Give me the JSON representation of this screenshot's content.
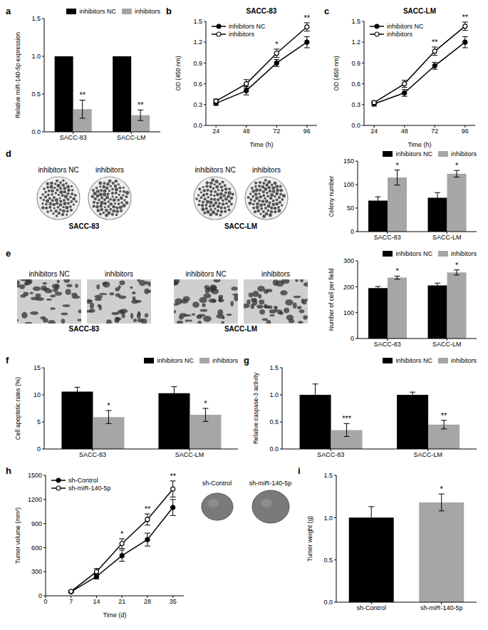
{
  "chart_data": [
    {
      "panel": "a",
      "type": "bar",
      "categories": [
        "SACC-83",
        "SACC-LM"
      ],
      "series": [
        {
          "name": "inhibitors NC",
          "color": "#000000",
          "values": [
            1,
            1
          ]
        },
        {
          "name": "inhibitors",
          "color": "#a6a6a6",
          "values": [
            0.3,
            0.22
          ],
          "errors": [
            0.12,
            0.07
          ]
        }
      ],
      "y_label": "Relative miR-140-5p expression",
      "ylim": [
        0,
        1.5
      ],
      "yticks": [
        {
          "value": 0,
          "label": "0.0"
        },
        0.5,
        {
          "value": 1,
          "label": "1.0"
        },
        1.5
      ],
      "legend": "upper right",
      "annotations": [
        {
          "text": "**",
          "category": "SACC-83",
          "series": "inhibitors"
        },
        {
          "text": "**",
          "category": "SACC-LM",
          "series": "inhibitors"
        }
      ]
    },
    {
      "panel": "b",
      "type": "line",
      "title": "SACC-83",
      "x": [
        24,
        48,
        72,
        96
      ],
      "xlim": [
        16,
        104
      ],
      "xticks": [
        24,
        48,
        72,
        96
      ],
      "x_label": "Time (h)",
      "y_label": "OD (450 nm)",
      "ylim": [
        0,
        1.5
      ],
      "yticks": [
        {
          "value": 0,
          "label": "0.0"
        },
        0.3,
        0.6,
        0.9,
        1.2,
        1.5
      ],
      "legend": "upper left",
      "series": [
        {
          "name": "inhibitors NC",
          "color": "#000000",
          "marker": "circle",
          "values": [
            0.32,
            0.5,
            0.9,
            1.2
          ],
          "errors": [
            0.03,
            0.06,
            0.05,
            0.08
          ]
        },
        {
          "name": "inhibitors",
          "color": "#000000",
          "marker": "open circle",
          "values": [
            0.35,
            0.6,
            1.04,
            1.42
          ],
          "errors": [
            0.03,
            0.06,
            0.06,
            0.06
          ]
        }
      ],
      "annotations": [
        {
          "text": "*",
          "x": 72
        },
        {
          "text": "**",
          "x": 96
        }
      ]
    },
    {
      "panel": "c",
      "type": "line",
      "title": "SACC-LM",
      "x": [
        24,
        48,
        72,
        96
      ],
      "xlim": [
        16,
        104
      ],
      "xticks": [
        24,
        48,
        72,
        96
      ],
      "x_label": "Time (h)",
      "y_label": "OD (450 nm)",
      "ylim": [
        0,
        1.5
      ],
      "yticks": [
        {
          "value": 0,
          "label": "0.0"
        },
        0.3,
        0.6,
        0.9,
        1.2,
        1.5
      ],
      "legend": "upper left",
      "series": [
        {
          "name": "inhibitors NC",
          "color": "#000000",
          "marker": "circle",
          "values": [
            0.31,
            0.47,
            0.86,
            1.2
          ],
          "errors": [
            0.03,
            0.05,
            0.05,
            0.08
          ]
        },
        {
          "name": "inhibitors",
          "color": "#000000",
          "marker": "open circle",
          "values": [
            0.33,
            0.6,
            1.07,
            1.43
          ],
          "errors": [
            0.02,
            0.05,
            0.06,
            0.06
          ]
        }
      ],
      "annotations": [
        {
          "text": "**",
          "x": 72
        },
        {
          "text": "**",
          "x": 96
        }
      ]
    },
    {
      "panel": "d",
      "type": "bar",
      "categories": [
        "SACC-83",
        "SACC-LM"
      ],
      "series": [
        {
          "name": "inhibitors NC",
          "color": "#000000",
          "values": [
            66,
            72
          ],
          "errors": [
            8,
            11
          ]
        },
        {
          "name": "inhibitors",
          "color": "#a6a6a6",
          "values": [
            115,
            123
          ],
          "errors": [
            16,
            7
          ]
        }
      ],
      "y_label": "Colony number",
      "ylim": [
        0,
        150
      ],
      "yticks": [
        0,
        50,
        100,
        150
      ],
      "legend": "upper right",
      "annotations": [
        {
          "text": "*",
          "category": "SACC-83",
          "series": "inhibitors"
        },
        {
          "text": "*",
          "category": "SACC-LM",
          "series": "inhibitors"
        }
      ],
      "image_groups": [
        {
          "labels": [
            "inhibitors NC",
            "inhibitors"
          ],
          "caption": "SACC-83"
        },
        {
          "labels": [
            "inhibitors NC",
            "inhibitors"
          ],
          "caption": "SACC-LM"
        }
      ]
    },
    {
      "panel": "e",
      "type": "bar",
      "categories": [
        "SACC-83",
        "SACC-LM"
      ],
      "series": [
        {
          "name": "inhibitors NC",
          "color": "#000000",
          "values": [
            195,
            205
          ],
          "errors": [
            6,
            9
          ]
        },
        {
          "name": "inhibitors",
          "color": "#a6a6a6",
          "values": [
            235,
            255
          ],
          "errors": [
            6,
            10
          ]
        }
      ],
      "y_label": "Number of cell per field",
      "ylim": [
        0,
        300
      ],
      "yticks": [
        0,
        100,
        200,
        300
      ],
      "legend": "upper right",
      "annotations": [
        {
          "text": "*",
          "category": "SACC-83",
          "series": "inhibitors"
        },
        {
          "text": "*",
          "category": "SACC-LM",
          "series": "inhibitors"
        }
      ],
      "image_groups": [
        {
          "labels": [
            "inhibitors NC",
            "inhibitors"
          ],
          "caption": "SACC-83"
        },
        {
          "labels": [
            "inhibitors NC",
            "inhibitors"
          ],
          "caption": "SACC-LM"
        }
      ]
    },
    {
      "panel": "f",
      "type": "bar",
      "categories": [
        "SACC-83",
        "SACC-LM"
      ],
      "series": [
        {
          "name": "inhibitors NC",
          "color": "#000000",
          "values": [
            10.6,
            10.3
          ],
          "errors": [
            0.8,
            1.2
          ]
        },
        {
          "name": "inhibitors",
          "color": "#a6a6a6",
          "values": [
            5.9,
            6.3
          ],
          "errors": [
            1.2,
            1.2
          ]
        }
      ],
      "y_label": "Cell apoptotic rates (%)",
      "ylim": [
        0,
        15
      ],
      "yticks": [
        0,
        5,
        10,
        15
      ],
      "legend": "upper right",
      "annotations": [
        {
          "text": "*",
          "category": "SACC-83",
          "series": "inhibitors"
        },
        {
          "text": "*",
          "category": "SACC-LM",
          "series": "inhibitors"
        }
      ]
    },
    {
      "panel": "g",
      "type": "bar",
      "categories": [
        "SACC-83",
        "SACC-LM"
      ],
      "series": [
        {
          "name": "inhibitors NC",
          "color": "#000000",
          "values": [
            1,
            1
          ],
          "errors": [
            0.2,
            0.05
          ]
        },
        {
          "name": "inhibitors",
          "color": "#a6a6a6",
          "values": [
            0.35,
            0.45
          ],
          "errors": [
            0.12,
            0.08
          ]
        }
      ],
      "y_label": "Relative caspase-3 activity",
      "ylim": [
        0,
        1.5
      ],
      "yticks": [
        {
          "value": 0,
          "label": "0.0"
        },
        0.5,
        {
          "value": 1,
          "label": "1.0"
        },
        1.5
      ],
      "legend": "upper right",
      "annotations": [
        {
          "text": "***",
          "category": "SACC-83",
          "series": "inhibitors"
        },
        {
          "text": "**",
          "category": "SACC-LM",
          "series": "inhibitors"
        }
      ]
    },
    {
      "panel": "h",
      "type": "line",
      "x": [
        7,
        14,
        21,
        28,
        35
      ],
      "xlim": [
        0,
        38
      ],
      "xticks": [
        0,
        7,
        14,
        21,
        28,
        35
      ],
      "x_label": "Time (d)",
      "y_label": "Tumor volume (mm³)",
      "ylim": [
        0,
        1500
      ],
      "yticks": [
        0,
        300,
        600,
        900,
        1200,
        1500
      ],
      "legend": "upper left",
      "series": [
        {
          "name": "sh-Control",
          "color": "#000000",
          "marker": "circle",
          "values": [
            50,
            240,
            500,
            700,
            1100
          ],
          "errors": [
            10,
            30,
            70,
            80,
            100
          ]
        },
        {
          "name": "sh-miR-140-5p",
          "color": "#000000",
          "marker": "open circle",
          "values": [
            55,
            300,
            650,
            950,
            1330
          ],
          "errors": [
            10,
            40,
            60,
            70,
            100
          ]
        }
      ],
      "annotations": [
        {
          "text": "*",
          "x": 21
        },
        {
          "text": "**",
          "x": 28
        },
        {
          "text": "**",
          "x": 35
        }
      ],
      "image_labels": [
        "sh-Control",
        "sh-miR-140-5p"
      ]
    },
    {
      "panel": "i",
      "type": "bar",
      "categories": [
        "sh-Control",
        "sh-miR-140-5p"
      ],
      "values": [
        1,
        1.18
      ],
      "errors": [
        0.13,
        0.1
      ],
      "colors": [
        "#000000",
        "#a6a6a6"
      ],
      "y_label": "Tumor weight (g)",
      "ylim": [
        0,
        1.5
      ],
      "yticks": [
        {
          "value": 0,
          "label": "0.0"
        },
        0.5,
        {
          "value": 1,
          "label": "1.0"
        },
        1.5
      ],
      "annotations": [
        {
          "text": "*",
          "category": "sh-miR-140-5p"
        }
      ]
    }
  ]
}
